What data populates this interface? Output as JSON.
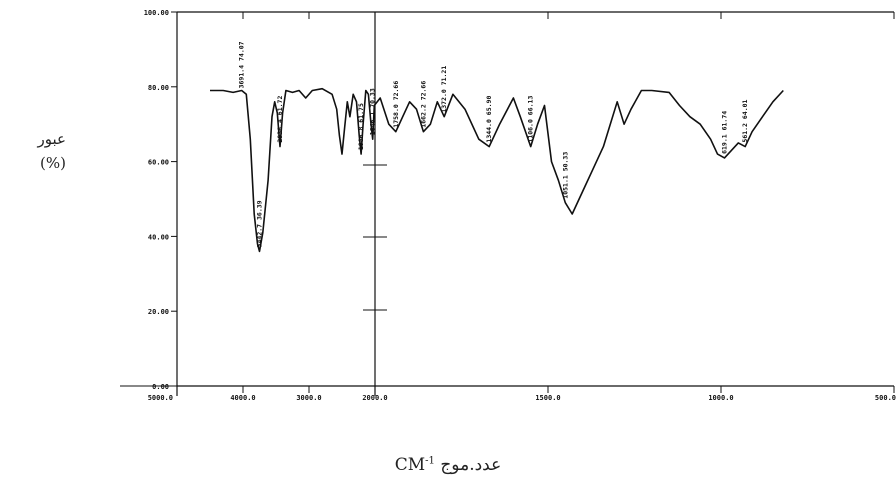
{
  "chart_data": {
    "type": "line",
    "title": "",
    "ylabel_word": "عبور",
    "ylabel_unit": "(%)",
    "xlabel_unit": "CM",
    "xlabel_sup": "-1",
    "xlabel_word": "عدد.موج",
    "ylim": [
      0,
      100
    ],
    "xlim": [
      5000,
      500
    ],
    "grid": false,
    "y_ticks": [
      {
        "value": 100,
        "label": "100.00"
      },
      {
        "value": 80,
        "label": "80.00"
      },
      {
        "value": 60,
        "label": "60.00"
      },
      {
        "value": 40,
        "label": "40.00"
      },
      {
        "value": 20,
        "label": "20.00"
      },
      {
        "value": 0,
        "label": "0.00"
      }
    ],
    "x_ticks": [
      {
        "value": 5000,
        "label": "5000.0"
      },
      {
        "value": 4000,
        "label": "4000.0"
      },
      {
        "value": 3000,
        "label": "3000.0"
      },
      {
        "value": 2000,
        "label": "2000.0"
      },
      {
        "value": 1500,
        "label": "1500.0"
      },
      {
        "value": 1000,
        "label": "1000.0"
      },
      {
        "value": 500,
        "label": "500.0"
      }
    ],
    "series": [
      {
        "values": [
          [
            4500,
            79
          ],
          [
            4300,
            79
          ],
          [
            4150,
            78.5
          ],
          [
            4020,
            79
          ],
          [
            3950,
            78
          ],
          [
            3890,
            66
          ],
          [
            3830,
            46
          ],
          [
            3780,
            38
          ],
          [
            3750,
            36
          ],
          [
            3700,
            41
          ],
          [
            3620,
            55
          ],
          [
            3560,
            72
          ],
          [
            3520,
            76
          ],
          [
            3480,
            73
          ],
          [
            3440,
            64
          ],
          [
            3400,
            73
          ],
          [
            3350,
            79
          ],
          [
            3250,
            78.5
          ],
          [
            3150,
            79
          ],
          [
            3050,
            77
          ],
          [
            2950,
            79
          ],
          [
            2800,
            79.5
          ],
          [
            2650,
            78
          ],
          [
            2580,
            74
          ],
          [
            2540,
            67
          ],
          [
            2500,
            62
          ],
          [
            2460,
            69
          ],
          [
            2420,
            76
          ],
          [
            2380,
            72
          ],
          [
            2330,
            78
          ],
          [
            2280,
            76
          ],
          [
            2240,
            67
          ],
          [
            2210,
            62
          ],
          [
            2180,
            70
          ],
          [
            2140,
            79
          ],
          [
            2100,
            78
          ],
          [
            2060,
            70
          ],
          [
            2035,
            66
          ],
          [
            2010,
            75
          ],
          [
            1985,
            77
          ],
          [
            1960,
            70
          ],
          [
            1940,
            68
          ],
          [
            1920,
            72
          ],
          [
            1900,
            76
          ],
          [
            1880,
            74
          ],
          [
            1860,
            68
          ],
          [
            1840,
            70
          ],
          [
            1820,
            76
          ],
          [
            1800,
            72
          ],
          [
            1775,
            78
          ],
          [
            1740,
            74
          ],
          [
            1700,
            66
          ],
          [
            1670,
            64
          ],
          [
            1640,
            70
          ],
          [
            1600,
            77
          ],
          [
            1580,
            72
          ],
          [
            1550,
            64
          ],
          [
            1530,
            70
          ],
          [
            1510,
            75
          ],
          [
            1490,
            60
          ],
          [
            1470,
            55
          ],
          [
            1450,
            49
          ],
          [
            1430,
            46
          ],
          [
            1400,
            52
          ],
          [
            1370,
            58
          ],
          [
            1340,
            64
          ],
          [
            1300,
            76
          ],
          [
            1280,
            70
          ],
          [
            1260,
            74
          ],
          [
            1230,
            79
          ],
          [
            1200,
            79
          ],
          [
            1150,
            78.5
          ],
          [
            1120,
            75
          ],
          [
            1090,
            72
          ],
          [
            1060,
            70
          ],
          [
            1030,
            66
          ],
          [
            1010,
            62
          ],
          [
            990,
            61
          ],
          [
            970,
            63
          ],
          [
            950,
            65
          ],
          [
            930,
            64
          ],
          [
            910,
            68
          ],
          [
            880,
            72
          ],
          [
            850,
            76
          ],
          [
            820,
            79
          ]
        ]
      }
    ],
    "annotations": [
      {
        "label": "3691.4 74.07",
        "x": 4020,
        "y": 78.5
      },
      {
        "label": "3442.7 36.39",
        "x": 3750,
        "y": 36
      },
      {
        "label": "2936.4 61.72",
        "x": 3440,
        "y": 64
      },
      {
        "label": "1986.8 61.75",
        "x": 2210,
        "y": 62
      },
      {
        "label": "1846.1 70.33",
        "x": 2035,
        "y": 66
      },
      {
        "label": "1758.0 72.66",
        "x": 1940,
        "y": 68
      },
      {
        "label": "1662.2 72.66",
        "x": 1860,
        "y": 68
      },
      {
        "label": "1372.0 71.21",
        "x": 1800,
        "y": 72
      },
      {
        "label": "1344.0 65.90",
        "x": 1670,
        "y": 64
      },
      {
        "label": "1106.0 66.13",
        "x": 1550,
        "y": 64
      },
      {
        "label": "1051.1 50.33",
        "x": 1450,
        "y": 49
      },
      {
        "label": "619.1 61.74",
        "x": 990,
        "y": 61
      },
      {
        "label": "561.2 64.01",
        "x": 930,
        "y": 64
      }
    ]
  }
}
